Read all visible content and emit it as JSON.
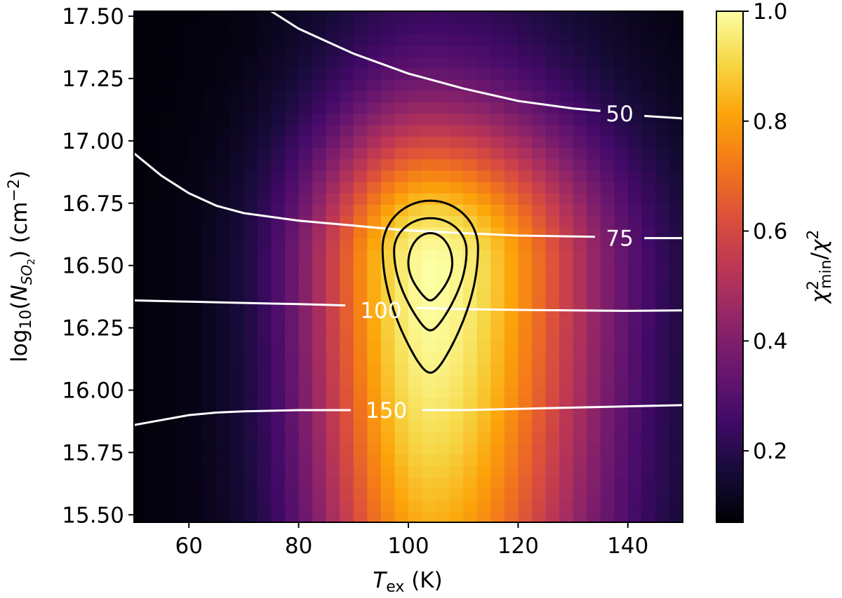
{
  "chart_data": {
    "type": "heatmap",
    "xlabel": {
      "main": "T",
      "sub": "ex",
      "unit": " (K)"
    },
    "ylabel": {
      "pre": "log",
      "sub10": "10",
      "paren": "(",
      "N": "N",
      "subN": "SO",
      "sub2": "2",
      "rest": ") (cm",
      "sup": "−2",
      "close": ")"
    },
    "colorbar_label": {
      "chi": "χ",
      "sup1": "2",
      "sub1": "min",
      "slash": "/",
      "chi2": "χ",
      "sup2": "2"
    },
    "xlim": [
      50,
      150
    ],
    "ylim": [
      15.47,
      17.52
    ],
    "x_ticks": [
      "60",
      "80",
      "100",
      "120",
      "140"
    ],
    "x_tick_values": [
      60,
      80,
      100,
      120,
      140
    ],
    "y_ticks": [
      "15.50",
      "15.75",
      "16.00",
      "16.25",
      "16.50",
      "16.75",
      "17.00",
      "17.25",
      "17.50"
    ],
    "y_tick_values": [
      15.5,
      15.75,
      16.0,
      16.25,
      16.5,
      16.75,
      17.0,
      17.25,
      17.5
    ],
    "colorbar_range": [
      0.07,
      1.0
    ],
    "colorbar_ticks": [
      "0.2",
      "0.4",
      "0.6",
      "0.8",
      "1.0"
    ],
    "colorbar_tick_values": [
      0.2,
      0.4,
      0.6,
      0.8,
      1.0
    ],
    "colormap": "inferno",
    "peak": {
      "x": 104,
      "y": 16.5,
      "value": 1.0
    },
    "white_contours": [
      {
        "label": "50",
        "label_pos": [
          138.5,
          17.11
        ],
        "points": [
          [
            75,
            17.52
          ],
          [
            80,
            17.45
          ],
          [
            90,
            17.35
          ],
          [
            100,
            17.27
          ],
          [
            110,
            17.21
          ],
          [
            120,
            17.16
          ],
          [
            130,
            17.13
          ],
          [
            135,
            17.12
          ]
        ],
        "points2": [
          [
            143,
            17.1
          ],
          [
            150,
            17.09
          ]
        ]
      },
      {
        "label": "75",
        "label_pos": [
          138.5,
          16.61
        ],
        "points": [
          [
            50,
            16.95
          ],
          [
            55,
            16.86
          ],
          [
            60,
            16.79
          ],
          [
            65,
            16.74
          ],
          [
            70,
            16.71
          ],
          [
            80,
            16.68
          ],
          [
            90,
            16.66
          ],
          [
            100,
            16.64
          ],
          [
            110,
            16.63
          ],
          [
            120,
            16.62
          ],
          [
            134,
            16.615
          ]
        ],
        "points2": [
          [
            143,
            16.61
          ],
          [
            150,
            16.61
          ]
        ]
      },
      {
        "label": "100",
        "label_pos": [
          95,
          16.32
        ],
        "points": [
          [
            50,
            16.36
          ],
          [
            60,
            16.355
          ],
          [
            70,
            16.35
          ],
          [
            80,
            16.345
          ],
          [
            88.5,
            16.34
          ]
        ],
        "points2": [
          [
            101.5,
            16.33
          ],
          [
            110,
            16.325
          ],
          [
            120,
            16.322
          ],
          [
            130,
            16.32
          ],
          [
            140,
            16.318
          ],
          [
            150,
            16.32
          ]
        ]
      },
      {
        "label": "150",
        "label_pos": [
          96,
          15.92
        ],
        "points": [
          [
            50,
            15.86
          ],
          [
            55,
            15.88
          ],
          [
            60,
            15.9
          ],
          [
            65,
            15.91
          ],
          [
            70,
            15.915
          ],
          [
            80,
            15.92
          ],
          [
            89.5,
            15.92
          ]
        ],
        "points2": [
          [
            102.5,
            15.92
          ],
          [
            110,
            15.92
          ],
          [
            120,
            15.925
          ],
          [
            130,
            15.93
          ],
          [
            140,
            15.935
          ],
          [
            150,
            15.94
          ]
        ]
      }
    ],
    "black_contours": [
      {
        "center": [
          104,
          16.57
        ],
        "rx": 8.7,
        "ry_top": 0.19,
        "ry_bottom": 0.5
      },
      {
        "center": [
          104,
          16.56
        ],
        "rx": 6.6,
        "ry_top": 0.13,
        "ry_bottom": 0.32
      },
      {
        "center": [
          104,
          16.51
        ],
        "rx": 4.0,
        "ry_top": 0.12,
        "ry_bottom": 0.15
      }
    ]
  }
}
